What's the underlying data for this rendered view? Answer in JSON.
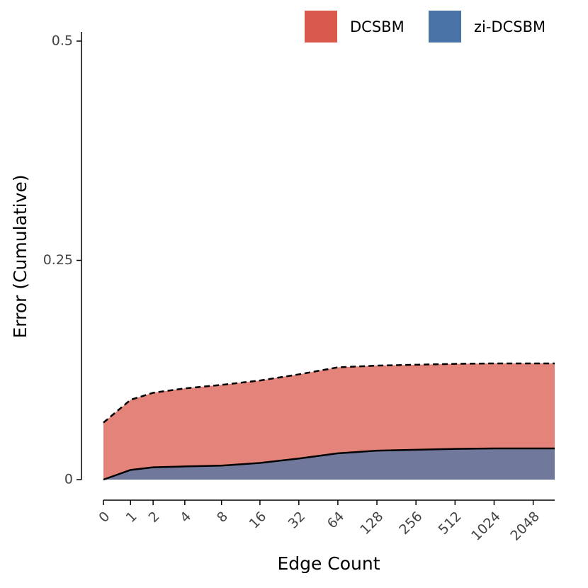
{
  "chart_data": {
    "type": "area",
    "x_label": "Edge Count",
    "y_label": "Error (Cumulative)",
    "xscale": "pseudo_log",
    "x": [
      0,
      1,
      2,
      4,
      8,
      16,
      32,
      64,
      128,
      256,
      512,
      1024,
      2048,
      3000
    ],
    "series": [
      {
        "name": "DCSBM",
        "color": "#d9594c",
        "line": "dashed",
        "values": [
          0.065,
          0.091,
          0.099,
          0.104,
          0.108,
          0.113,
          0.12,
          0.128,
          0.13,
          0.131,
          0.132,
          0.1325,
          0.1325,
          0.1325
        ]
      },
      {
        "name": "zi-DCSBM",
        "color": "#4a74a8",
        "line": "solid",
        "values": [
          0,
          0.011,
          0.014,
          0.015,
          0.016,
          0.019,
          0.024,
          0.03,
          0.033,
          0.034,
          0.035,
          0.0355,
          0.0355,
          0.0355
        ]
      }
    ],
    "xlim": [
      0,
      3000
    ],
    "ylim": [
      0,
      0.5
    ],
    "xticks": [
      0,
      1,
      2,
      4,
      8,
      16,
      32,
      64,
      128,
      256,
      512,
      1024,
      2048
    ],
    "yticks": [
      0,
      0.25,
      0.5
    ],
    "legend": "top-right",
    "grid": false
  }
}
